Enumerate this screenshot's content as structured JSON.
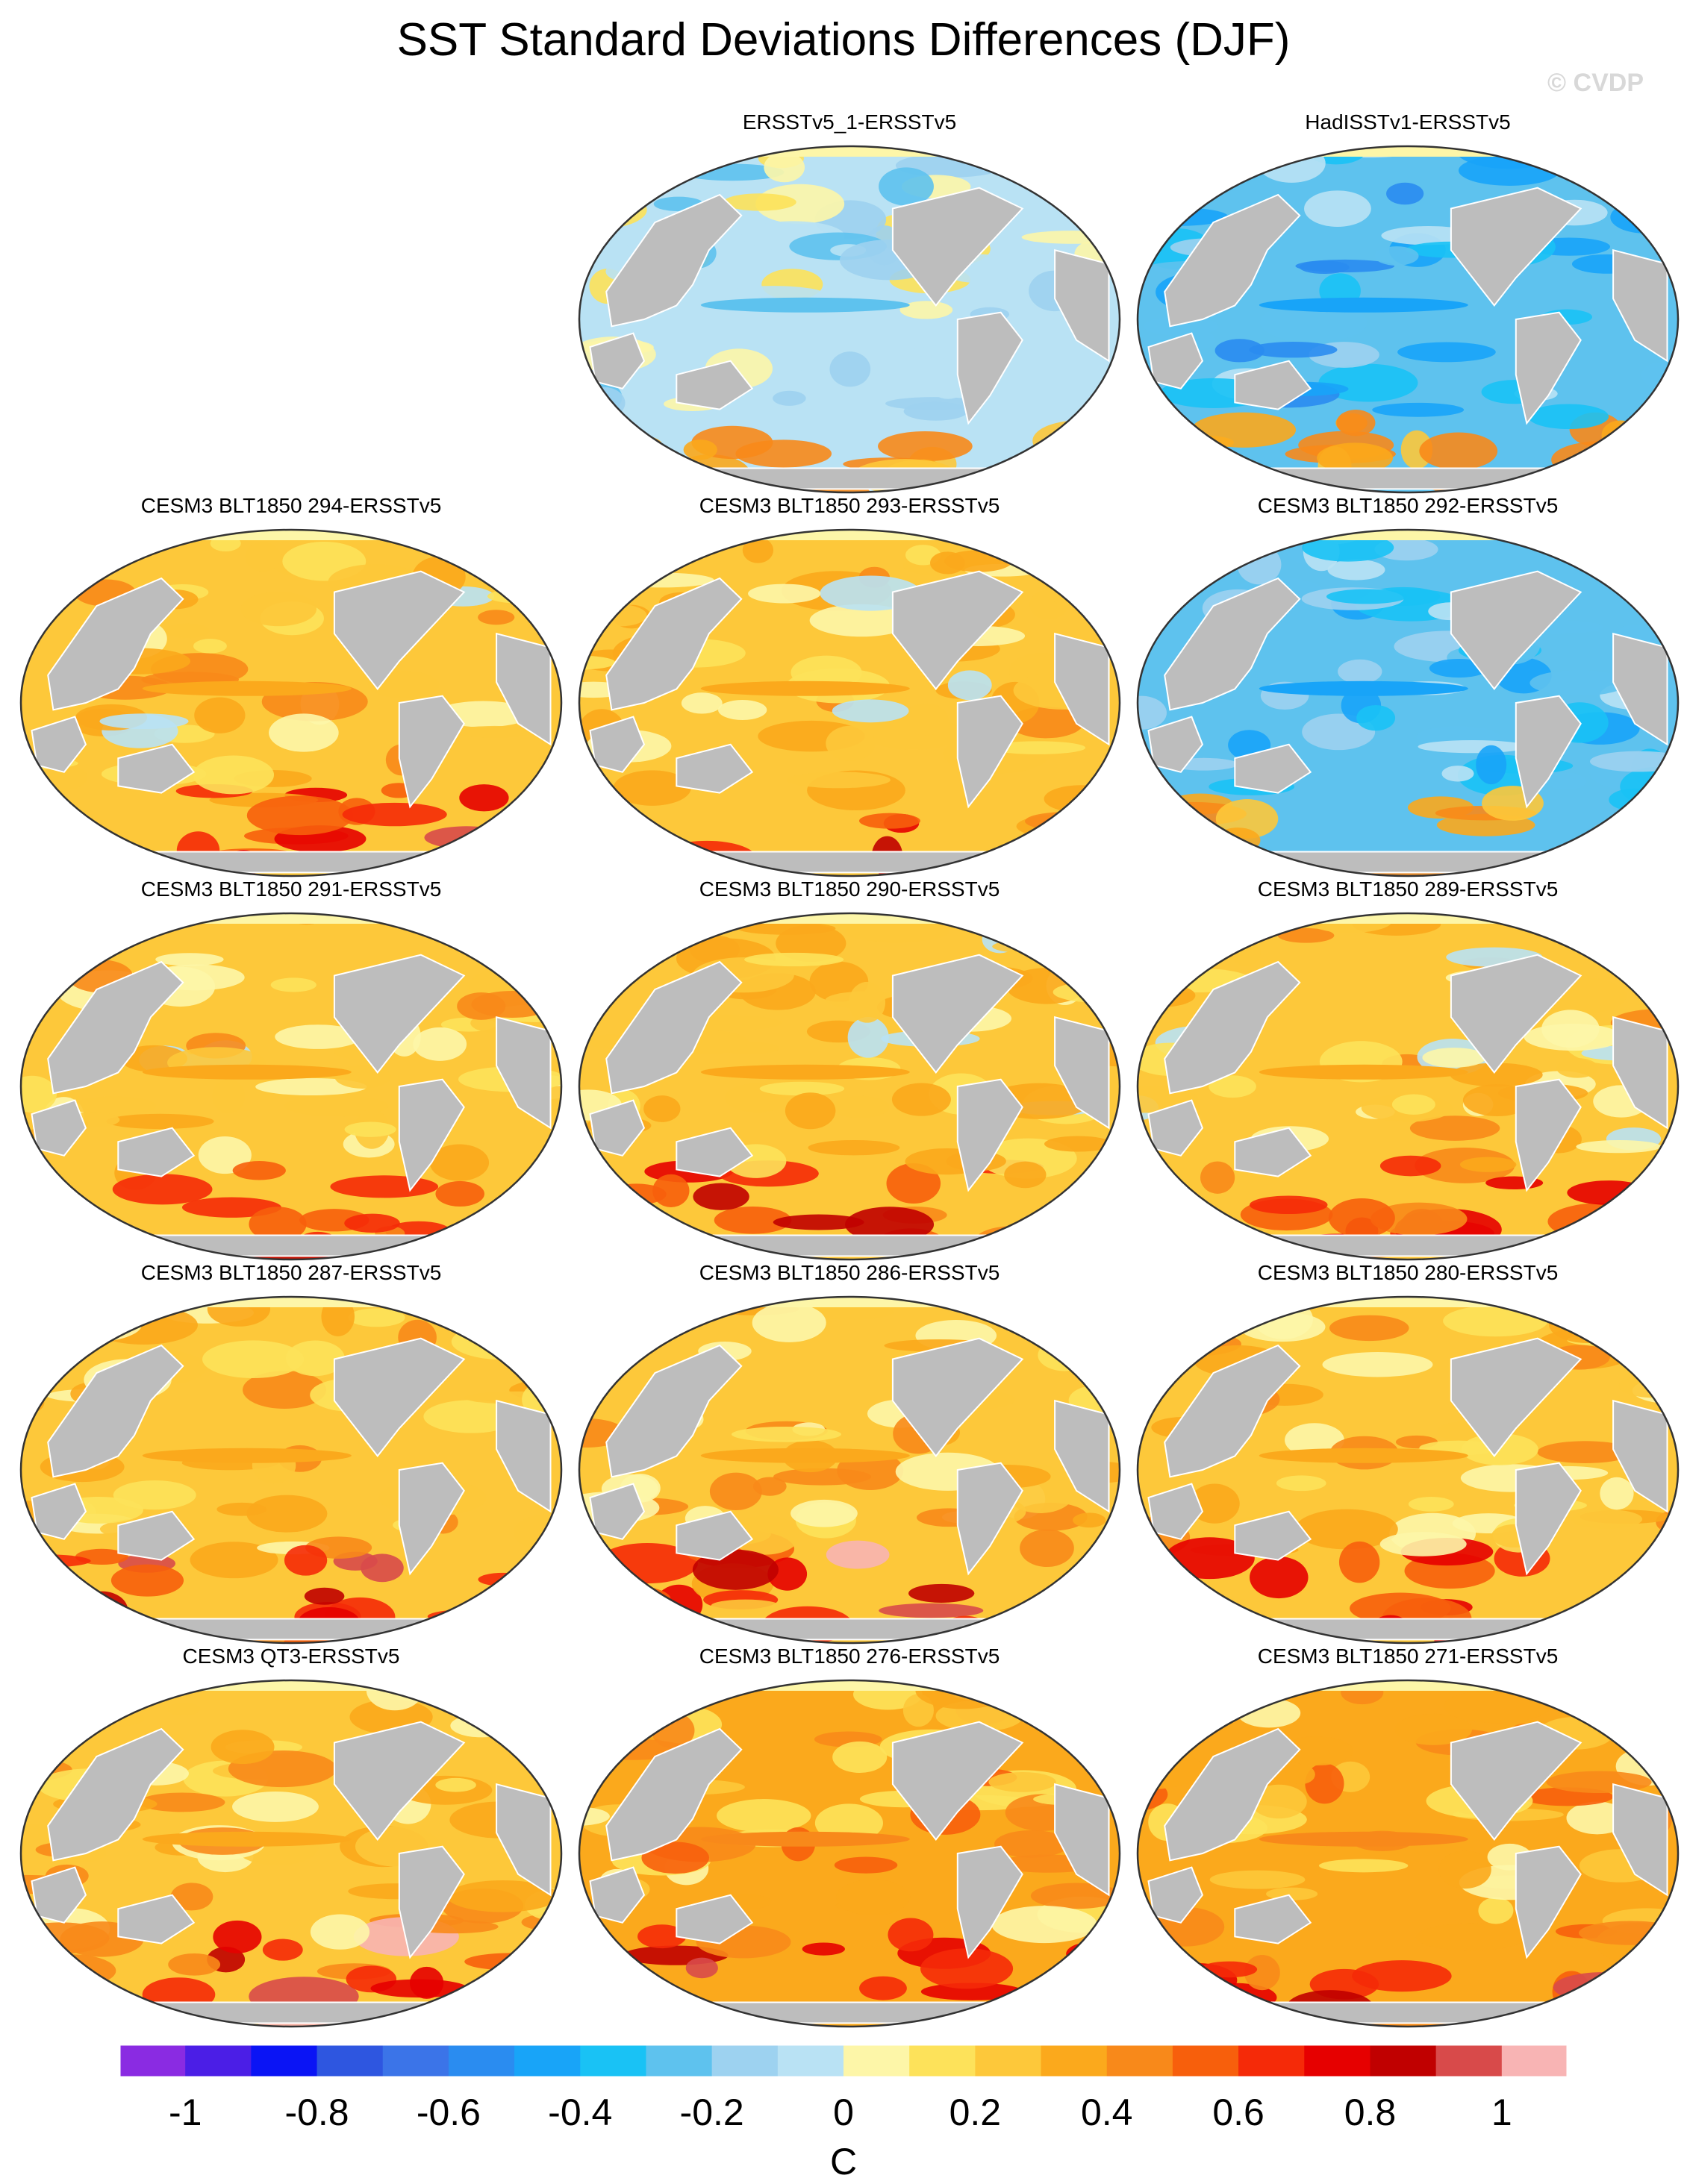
{
  "title": "SST Standard Deviations Differences (DJF)",
  "watermark": "© CVDP",
  "colors": {
    "land": "#bdbdbd",
    "coastline": "#ffffff",
    "border": "#333333"
  },
  "chart_data": {
    "type": "heatmap",
    "projection": "Robinson (Pacific-centered)",
    "units": "C",
    "colorbar": {
      "levels": [
        -1.1,
        -1.0,
        -0.9,
        -0.8,
        -0.7,
        -0.6,
        -0.5,
        -0.4,
        -0.3,
        -0.2,
        -0.1,
        0,
        0.1,
        0.2,
        0.3,
        0.4,
        0.5,
        0.6,
        0.7,
        0.8,
        0.9,
        1.0,
        1.1
      ],
      "tick_labels": [
        "-1",
        "-0.8",
        "-0.6",
        "-0.4",
        "-0.2",
        "0",
        "0.2",
        "0.4",
        "0.6",
        "0.8",
        "1"
      ],
      "tick_values": [
        -1,
        -0.8,
        -0.6,
        -0.4,
        -0.2,
        0,
        0.2,
        0.4,
        0.6,
        0.8,
        1
      ],
      "colors": [
        "#8a2be2",
        "#4b1ee6",
        "#0a14f5",
        "#2e56e0",
        "#3b74e8",
        "#2a8cf0",
        "#18a4f8",
        "#19c2f5",
        "#5ec2ee",
        "#9dd2f0",
        "#b9e2f4",
        "#fdf6a8",
        "#fde25a",
        "#fdc83a",
        "#fba91c",
        "#f8891a",
        "#f75f0c",
        "#f52a08",
        "#e60000",
        "#c00000",
        "#d84a4a",
        "#f8b4b4"
      ]
    },
    "panels": [
      {
        "title": "ERSSTv5_1-ERSSTv5",
        "mean_difference": -0.05
      },
      {
        "title": "HadISSTv1-ERSSTv5",
        "mean_difference": -0.3
      },
      {
        "title": "CESM3 BLT1850 294-ERSSTv5",
        "mean_difference": 0.2
      },
      {
        "title": "CESM3 BLT1850 293-ERSSTv5",
        "mean_difference": 0.2
      },
      {
        "title": "CESM3 BLT1850 292-ERSSTv5",
        "mean_difference": -0.25
      },
      {
        "title": "CESM3 BLT1850 291-ERSSTv5",
        "mean_difference": 0.2
      },
      {
        "title": "CESM3 BLT1850 290-ERSSTv5",
        "mean_difference": 0.2
      },
      {
        "title": "CESM3 BLT1850 289-ERSSTv5",
        "mean_difference": 0.2
      },
      {
        "title": "CESM3 BLT1850 287-ERSSTv5",
        "mean_difference": 0.25
      },
      {
        "title": "CESM3 BLT1850 286-ERSSTv5",
        "mean_difference": 0.25
      },
      {
        "title": "CESM3 BLT1850 280-ERSSTv5",
        "mean_difference": 0.25
      },
      {
        "title": "CESM3 QT3-ERSSTv5",
        "mean_difference": 0.25
      },
      {
        "title": "CESM3 BLT1850 276-ERSSTv5",
        "mean_difference": 0.3
      },
      {
        "title": "CESM3 BLT1850 271-ERSSTv5",
        "mean_difference": 0.3
      }
    ]
  }
}
